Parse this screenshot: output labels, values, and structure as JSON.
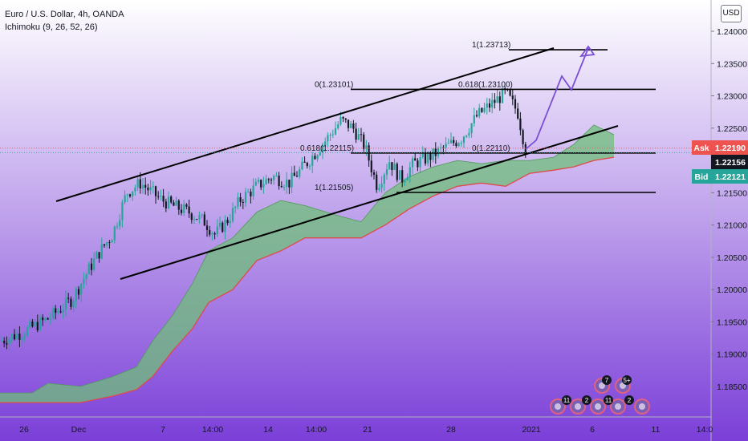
{
  "legend": {
    "symbol": "Euro / U.S. Dollar, 4h, OANDA",
    "indicator": "Ichimoku (9, 26, 52, 26)"
  },
  "currency_button": "USD",
  "colors": {
    "bg_top": "#ffffff",
    "bg_bottom": "#7b3fd8",
    "up_candle": "#26a69a",
    "down_candle": "#131722",
    "cloud_fill": "#6fbf7a",
    "cloud_lower": "#e04a4a",
    "ask": "#ef5350",
    "bid": "#26a69a",
    "last": "#131722",
    "projection": "#7a4fd6"
  },
  "price_axis": {
    "ticks": [
      "1.24000",
      "1.23500",
      "1.23000",
      "1.22500",
      "1.22000",
      "1.21500",
      "1.21000",
      "1.20500",
      "1.20000",
      "1.19500",
      "1.19000",
      "1.18500"
    ]
  },
  "time_axis": {
    "ticks": [
      "26",
      "Dec",
      "7",
      "14:00",
      "14",
      "14:00",
      "21",
      "28",
      "2021",
      "6",
      "11",
      "14:0"
    ]
  },
  "price_tags": {
    "ask": {
      "label": "Ask",
      "value": "1.22190"
    },
    "last": {
      "value": "1.22156"
    },
    "bid": {
      "label": "Bid",
      "value": "1.22121"
    }
  },
  "fib_labels": {
    "top_1": "1(1.23713)",
    "zero_a": "0(1.23101)",
    "level_618_b": "0.618(1.23100)",
    "level_618_a": "0.618(1.22115)",
    "zero_b": "0(1.22110)",
    "one_a": "1(1.21505)"
  },
  "events": [
    "11",
    "2",
    "11",
    "2",
    "7",
    "5+"
  ],
  "chart_data": {
    "type": "candlestick",
    "symbol": "Euro / U.S. Dollar, 4h, OANDA",
    "indicator": "Ichimoku (9, 26, 52, 26)",
    "y_range": [
      1.1785,
      1.2415
    ],
    "levels": [
      {
        "label": "1(1.23713)",
        "price": 1.23713
      },
      {
        "label": "0(1.23101)",
        "price": 1.23101
      },
      {
        "label": "0.618(1.23100)",
        "price": 1.231
      },
      {
        "label": "0.618(1.22115)",
        "price": 1.22115
      },
      {
        "label": "0(1.22110)",
        "price": 1.2211
      },
      {
        "label": "1(1.21505)",
        "price": 1.21505
      }
    ],
    "ask": 1.2219,
    "last": 1.22156,
    "bid": 1.22121,
    "price_path": [
      [
        0,
        1.192
      ],
      [
        30,
        1.1935
      ],
      [
        60,
        1.1955
      ],
      [
        90,
        1.1985
      ],
      [
        110,
        1.203
      ],
      [
        125,
        1.206
      ],
      [
        140,
        1.2085
      ],
      [
        158,
        1.215
      ],
      [
        175,
        1.2165
      ],
      [
        185,
        1.2155
      ],
      [
        200,
        1.214
      ],
      [
        215,
        1.213
      ],
      [
        235,
        1.212
      ],
      [
        255,
        1.2105
      ],
      [
        268,
        1.2085
      ],
      [
        285,
        1.211
      ],
      [
        300,
        1.214
      ],
      [
        320,
        1.216
      ],
      [
        340,
        1.2175
      ],
      [
        360,
        1.2165
      ],
      [
        385,
        1.22
      ],
      [
        405,
        1.223
      ],
      [
        425,
        1.2262
      ],
      [
        440,
        1.225
      ],
      [
        455,
        1.222
      ],
      [
        470,
        1.216
      ],
      [
        485,
        1.22
      ],
      [
        500,
        1.217
      ],
      [
        515,
        1.2195
      ],
      [
        535,
        1.2205
      ],
      [
        555,
        1.222
      ],
      [
        575,
        1.2235
      ],
      [
        595,
        1.227
      ],
      [
        615,
        1.229
      ],
      [
        630,
        1.2305
      ],
      [
        645,
        1.2275
      ],
      [
        655,
        1.2216
      ]
    ]
  }
}
